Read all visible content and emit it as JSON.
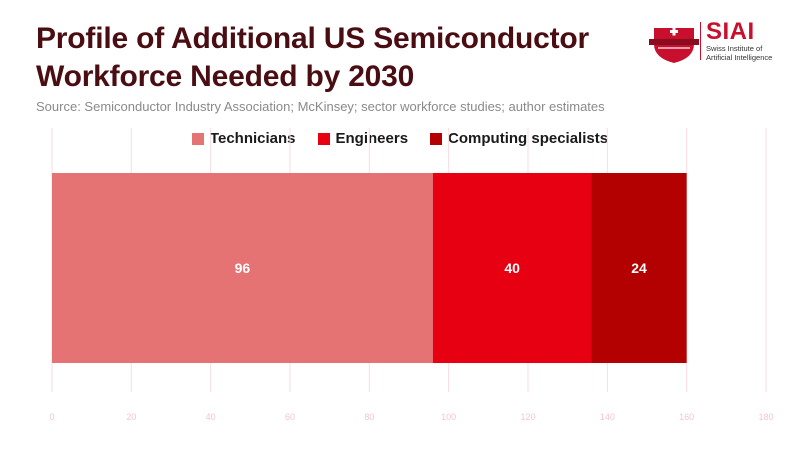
{
  "title_lines": [
    "Profile of Additional US Semiconductor",
    "Workforce Needed by 2030"
  ],
  "source": "Source: Semiconductor Industry Association; McKinsey; sector workforce studies; author estimates",
  "logo": {
    "name": "SIAI",
    "sub_line1": "Swiss Institute of",
    "sub_line2": "Artificial Intelligence"
  },
  "colors": {
    "title": "#4a0d12",
    "technicians": "#e57373",
    "engineers": "#e60012",
    "computing": "#b30000",
    "grid": "#f6dde0"
  },
  "chart_data": {
    "type": "bar",
    "orientation": "horizontal",
    "stacked": true,
    "categories": [
      ""
    ],
    "series": [
      {
        "name": "Technicians",
        "values": [
          96
        ]
      },
      {
        "name": "Engineers",
        "values": [
          40
        ]
      },
      {
        "name": "Computing specialists",
        "values": [
          24
        ]
      }
    ],
    "xlim": [
      0,
      180
    ],
    "xticks": [
      0,
      20,
      40,
      60,
      80,
      100,
      120,
      140,
      160,
      180
    ],
    "title": "Profile of Additional US Semiconductor Workforce Needed by 2030",
    "xlabel": "",
    "ylabel": "",
    "legend": "top-center",
    "grid": true
  }
}
